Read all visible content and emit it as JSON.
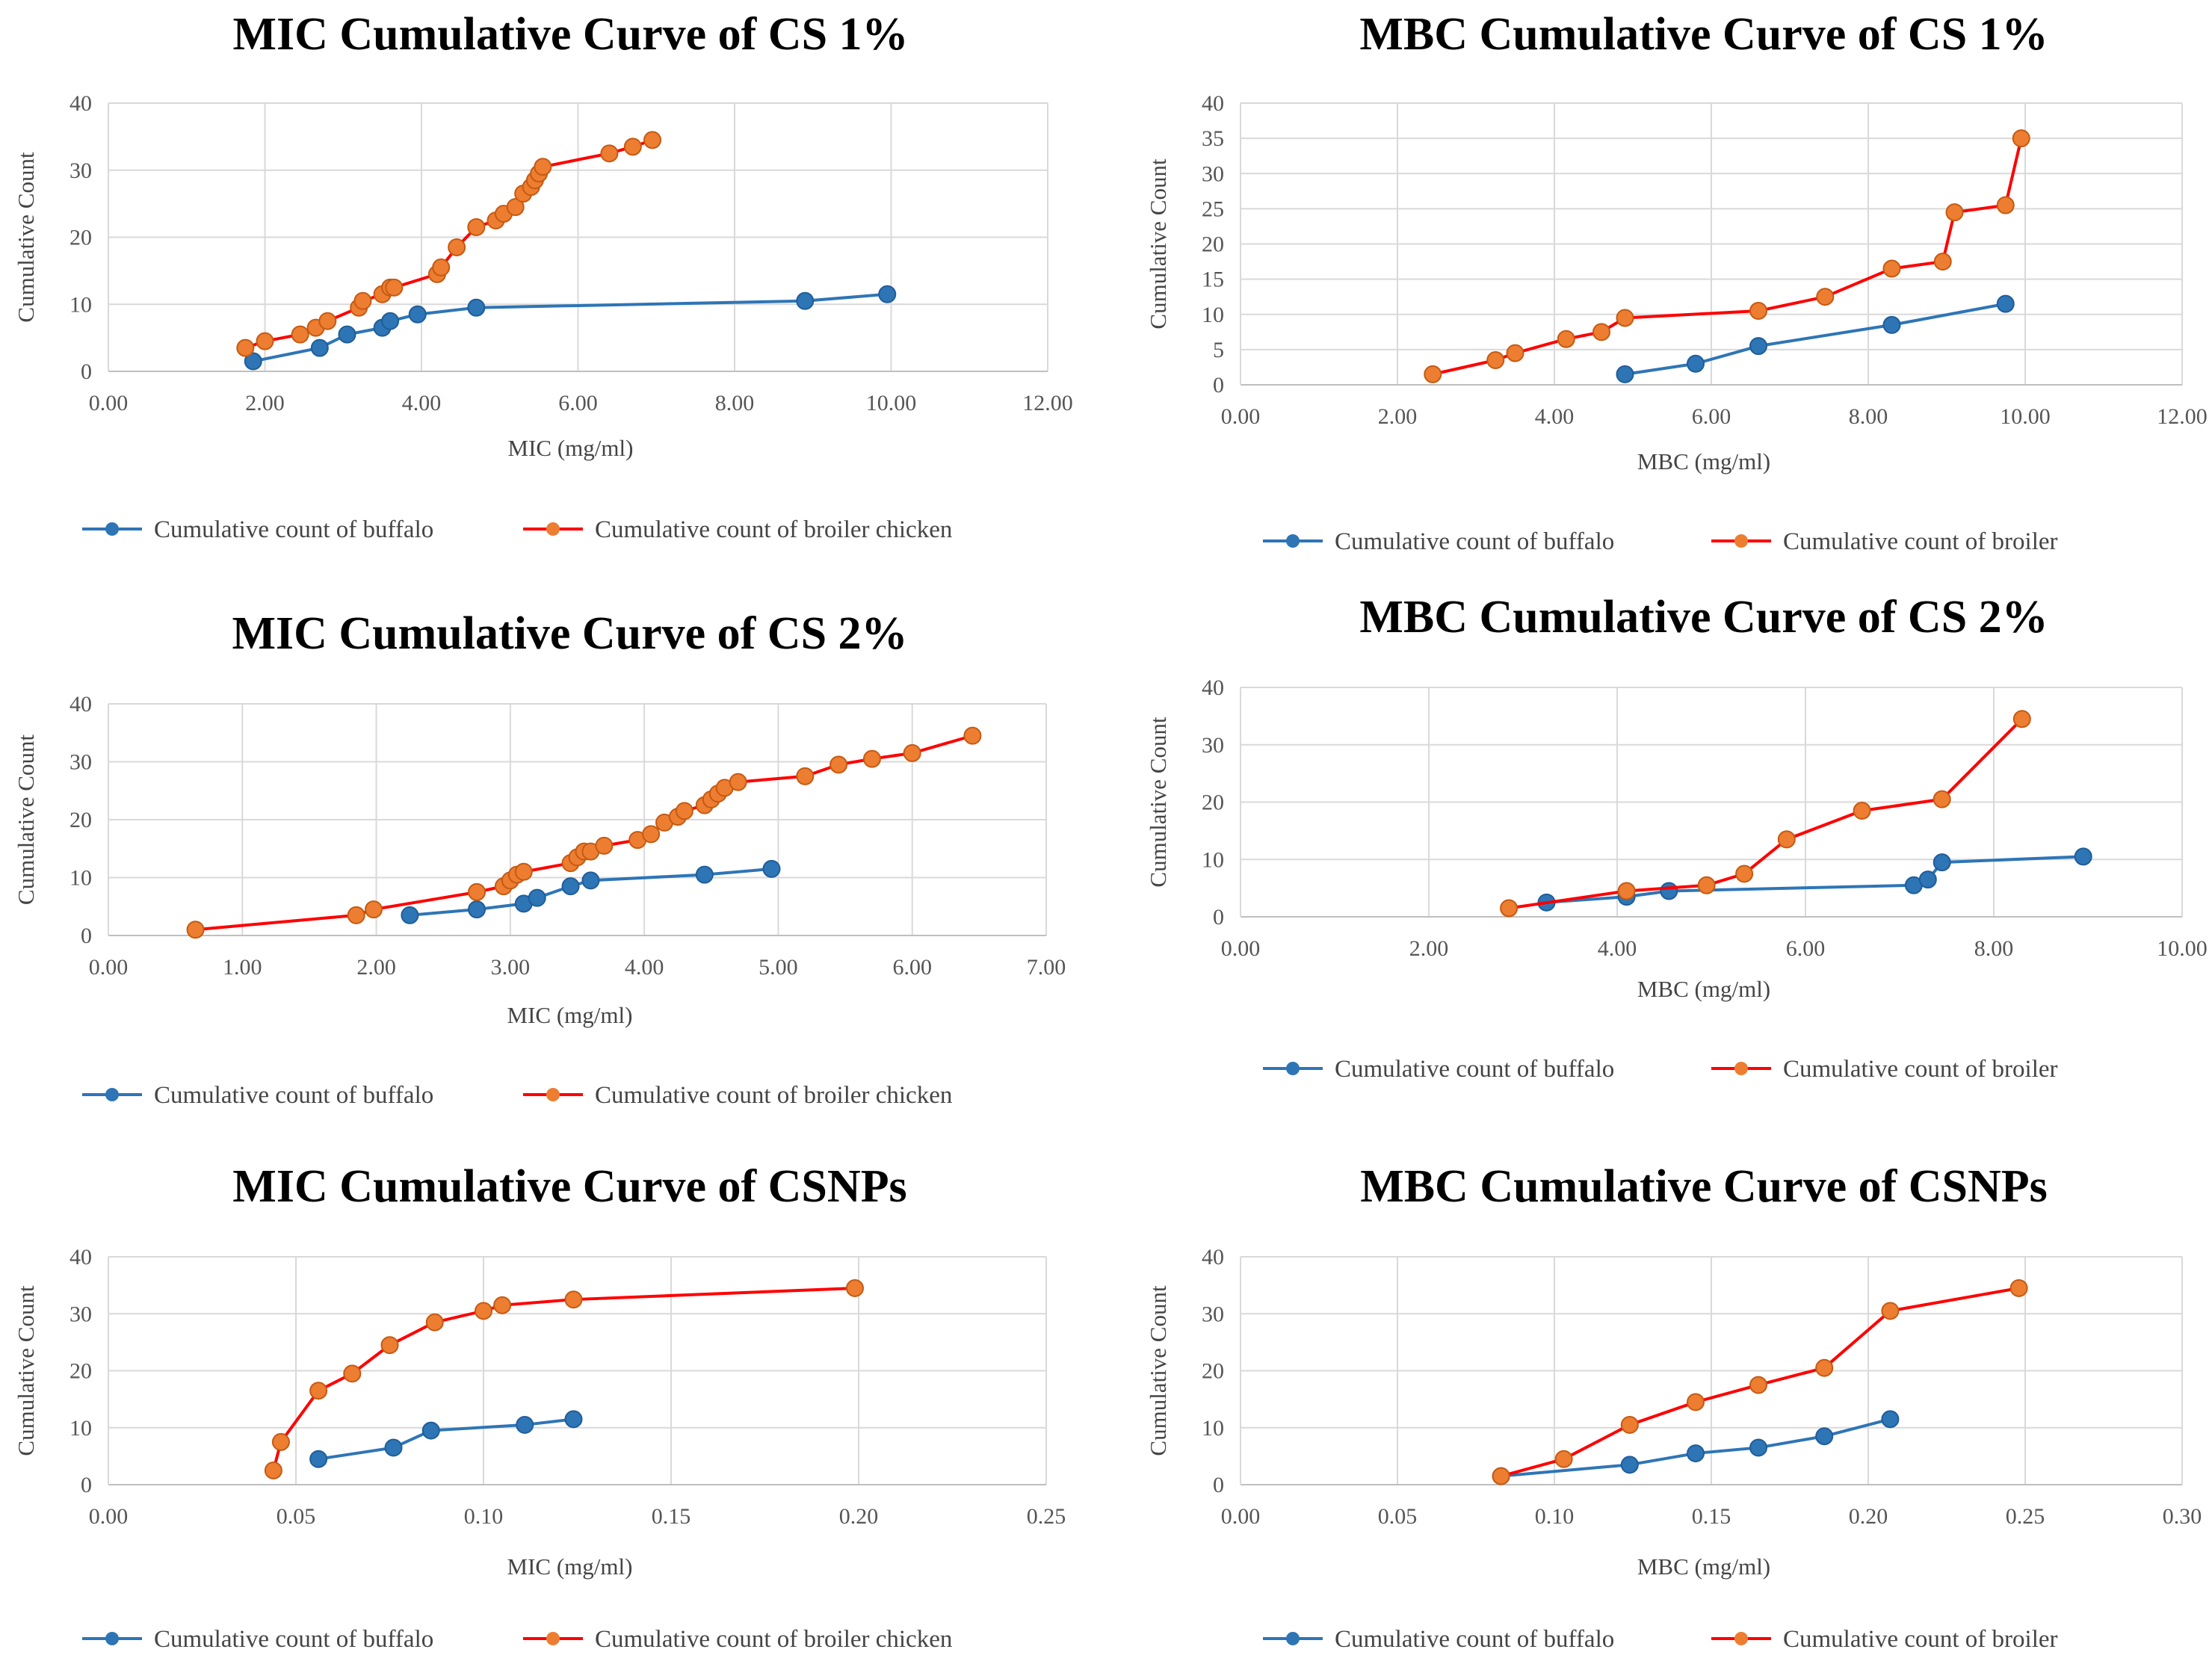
{
  "colors": {
    "buffalo": "#2E75B6",
    "broiler_line": "#FF0000",
    "broiler_marker": "#ED7D31"
  },
  "chart_data": [
    {
      "type": "line",
      "title": "MIC Cumulative Curve of CS 1%",
      "xlabel": "MIC (mg/ml)",
      "ylabel": "Cumulative Count",
      "xlim": [
        0,
        12
      ],
      "xticks": [
        0,
        2,
        4,
        6,
        8,
        10,
        12
      ],
      "ylim": [
        0,
        40
      ],
      "yticks": [
        0,
        10,
        20,
        30,
        40
      ],
      "x_decimals": 2,
      "legend": "bottom",
      "series": [
        {
          "name": "Cumulative count of buffalo",
          "color": "buffalo",
          "x": [
            1.85,
            2.7,
            3.05,
            3.5,
            3.6,
            3.95,
            4.7,
            8.9,
            9.95
          ],
          "y": [
            1.5,
            3.5,
            5.5,
            6.5,
            7.5,
            8.5,
            9.5,
            10.5,
            11.5
          ]
        },
        {
          "name": "Cumulative count of broiler chicken",
          "color": "broiler",
          "x": [
            1.75,
            2.0,
            2.45,
            2.65,
            2.8,
            3.2,
            3.25,
            3.5,
            3.6,
            3.65,
            4.2,
            4.25,
            4.45,
            4.7,
            4.95,
            5.05,
            5.2,
            5.3,
            5.4,
            5.45,
            5.5,
            5.55,
            6.4,
            6.7,
            6.95
          ],
          "y": [
            3.5,
            4.5,
            5.5,
            6.5,
            7.5,
            9.5,
            10.5,
            11.5,
            12.5,
            12.5,
            14.5,
            15.5,
            18.5,
            21.5,
            22.5,
            23.5,
            24.5,
            26.5,
            27.5,
            28.5,
            29.5,
            30.5,
            32.5,
            33.5,
            34.5
          ]
        }
      ]
    },
    {
      "type": "line",
      "title": "MBC Cumulative Curve of CS 1%",
      "xlabel": "MBC (mg/ml)",
      "ylabel": "Cumulative Count",
      "xlim": [
        0,
        12
      ],
      "xticks": [
        0,
        2,
        4,
        6,
        8,
        10,
        12
      ],
      "ylim": [
        0,
        40
      ],
      "yticks": [
        0,
        5,
        10,
        15,
        20,
        25,
        30,
        35,
        40
      ],
      "x_decimals": 2,
      "legend": "bottom",
      "series": [
        {
          "name": "Cumulative count of buffalo",
          "color": "buffalo",
          "x": [
            4.9,
            5.8,
            6.6,
            8.3,
            9.75
          ],
          "y": [
            1.5,
            3,
            5.5,
            8.5,
            11.5
          ]
        },
        {
          "name": "Cumulative count of broiler",
          "color": "broiler",
          "x": [
            2.45,
            3.25,
            3.5,
            4.15,
            4.6,
            4.9,
            6.6,
            7.45,
            8.3,
            8.95,
            9.1,
            9.75,
            9.95
          ],
          "y": [
            1.5,
            3.5,
            4.5,
            6.5,
            7.5,
            9.5,
            10.5,
            12.5,
            16.5,
            17.5,
            24.5,
            25.5,
            35
          ]
        }
      ]
    },
    {
      "type": "line",
      "title": "MIC Cumulative Curve of CS 2%",
      "xlabel": "MIC (mg/ml)",
      "ylabel": "Cumulative Count",
      "xlim": [
        0,
        7
      ],
      "xticks": [
        0,
        1,
        2,
        3,
        4,
        5,
        6,
        7
      ],
      "ylim": [
        0,
        40
      ],
      "yticks": [
        0,
        10,
        20,
        30,
        40
      ],
      "x_decimals": 2,
      "legend": "bottom",
      "series": [
        {
          "name": "Cumulative count of buffalo",
          "color": "buffalo",
          "x": [
            2.25,
            2.75,
            3.1,
            3.2,
            3.45,
            3.6,
            4.45,
            4.95
          ],
          "y": [
            3.5,
            4.5,
            5.5,
            6.5,
            8.5,
            9.5,
            10.5,
            11.5
          ]
        },
        {
          "name": "Cumulative count of broiler chicken",
          "color": "broiler",
          "x": [
            0.65,
            1.85,
            1.98,
            2.75,
            2.95,
            3.0,
            3.05,
            3.1,
            3.45,
            3.5,
            3.55,
            3.6,
            3.7,
            3.95,
            4.05,
            4.15,
            4.25,
            4.3,
            4.45,
            4.5,
            4.55,
            4.6,
            4.7,
            5.2,
            5.45,
            5.7,
            6.0,
            6.45
          ],
          "y": [
            1,
            3.5,
            4.5,
            7.5,
            8.5,
            9.5,
            10.5,
            11,
            12.5,
            13.5,
            14.5,
            14.5,
            15.5,
            16.5,
            17.5,
            19.5,
            20.5,
            21.5,
            22.5,
            23.5,
            24.5,
            25.5,
            26.5,
            27.5,
            29.5,
            30.5,
            31.5,
            34.5
          ]
        }
      ]
    },
    {
      "type": "line",
      "title": "MBC Cumulative Curve of CS 2%",
      "xlabel": "MBC (mg/ml)",
      "ylabel": "Cumulative Count",
      "xlim": [
        0,
        10
      ],
      "xticks": [
        0,
        2,
        4,
        6,
        8,
        10
      ],
      "ylim": [
        0,
        40
      ],
      "yticks": [
        0,
        10,
        20,
        30,
        40
      ],
      "x_decimals": 2,
      "legend": "bottom",
      "series": [
        {
          "name": "Cumulative count of buffalo",
          "color": "buffalo",
          "x": [
            3.25,
            4.1,
            4.55,
            7.15,
            7.3,
            7.45,
            8.95
          ],
          "y": [
            2.5,
            3.5,
            4.5,
            5.5,
            6.5,
            9.5,
            10.5
          ]
        },
        {
          "name": "Cumulative count of broiler",
          "color": "broiler",
          "x": [
            2.85,
            4.1,
            4.95,
            5.35,
            5.8,
            6.6,
            7.45,
            8.3
          ],
          "y": [
            1.5,
            4.5,
            5.5,
            7.5,
            13.5,
            18.5,
            20.5,
            34.5
          ]
        }
      ]
    },
    {
      "type": "line",
      "title": "MIC Cumulative Curve of CSNPs",
      "xlabel": "MIC (mg/ml)",
      "ylabel": "Cumulative Count",
      "xlim": [
        0,
        0.25
      ],
      "xticks": [
        0,
        0.05,
        0.1,
        0.15,
        0.2,
        0.25
      ],
      "ylim": [
        0,
        40
      ],
      "yticks": [
        0,
        10,
        20,
        30,
        40
      ],
      "x_decimals": 2,
      "legend": "bottom",
      "series": [
        {
          "name": "Cumulative count of buffalo",
          "color": "buffalo",
          "x": [
            0.056,
            0.076,
            0.086,
            0.111,
            0.124
          ],
          "y": [
            4.5,
            6.5,
            9.5,
            10.5,
            11.5
          ]
        },
        {
          "name": "Cumulative count of broiler chicken",
          "color": "broiler",
          "x": [
            0.044,
            0.046,
            0.056,
            0.065,
            0.075,
            0.087,
            0.1,
            0.105,
            0.124,
            0.199
          ],
          "y": [
            2.5,
            7.5,
            16.5,
            19.5,
            24.5,
            28.5,
            30.5,
            31.5,
            32.5,
            34.5
          ]
        }
      ]
    },
    {
      "type": "line",
      "title": "MBC Cumulative Curve of CSNPs",
      "xlabel": "MBC (mg/ml)",
      "ylabel": "Cumulative Count",
      "xlim": [
        0,
        0.3
      ],
      "xticks": [
        0,
        0.05,
        0.1,
        0.15,
        0.2,
        0.25,
        0.3
      ],
      "ylim": [
        0,
        40
      ],
      "yticks": [
        0,
        10,
        20,
        30,
        40
      ],
      "x_decimals": 2,
      "legend": "bottom",
      "series": [
        {
          "name": "Cumulative count of buffalo",
          "color": "buffalo",
          "x": [
            0.083,
            0.124,
            0.145,
            0.165,
            0.186,
            0.207
          ],
          "y": [
            1.5,
            3.5,
            5.5,
            6.5,
            8.5,
            11.5
          ]
        },
        {
          "name": "Cumulative count of broiler",
          "color": "broiler",
          "x": [
            0.083,
            0.103,
            0.124,
            0.145,
            0.165,
            0.186,
            0.207,
            0.248
          ],
          "y": [
            1.5,
            4.5,
            10.5,
            14.5,
            17.5,
            20.5,
            30.5,
            34.5
          ]
        }
      ]
    }
  ]
}
